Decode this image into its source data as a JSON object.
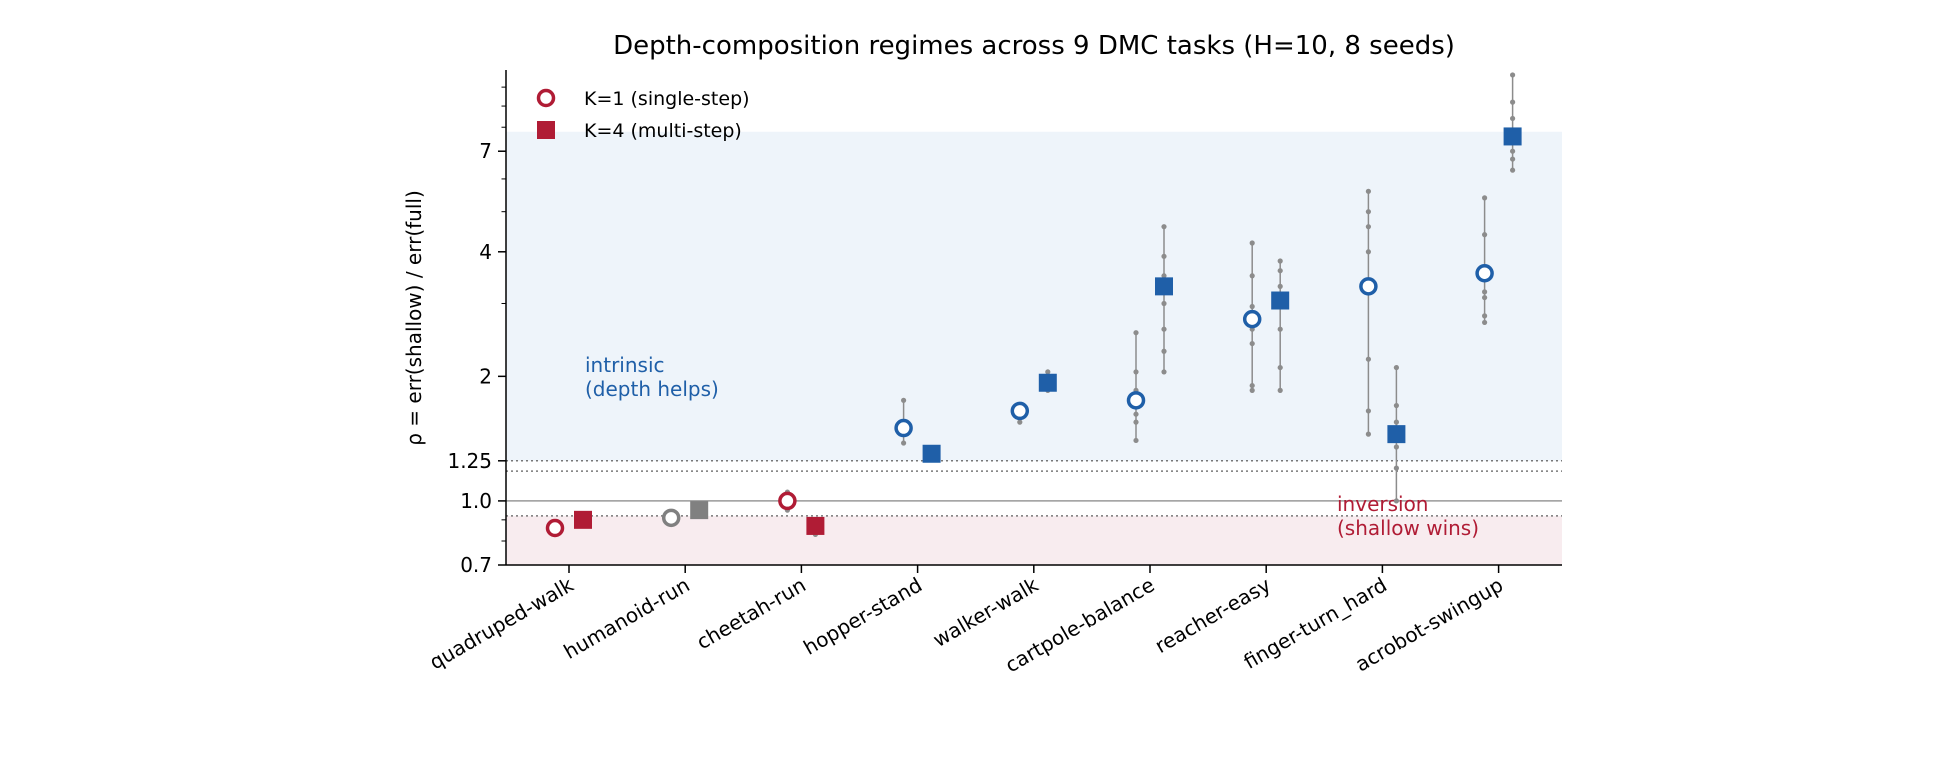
{
  "chart_data": {
    "type": "scatter",
    "title": "Depth-composition regimes across 9 DMC tasks (H=10, 8 seeds)",
    "ylabel": "ρ = err(shallow) / err(full)",
    "xlabel": "",
    "yscale": "log",
    "ylim": [
      0.7,
      11.0
    ],
    "yticks": [
      {
        "value": 0.7,
        "label": "0.7"
      },
      {
        "value": 1.0,
        "label": "1.0"
      },
      {
        "value": 1.25,
        "label": "1.25"
      },
      {
        "value": 2,
        "label": "2"
      },
      {
        "value": 4,
        "label": "4"
      },
      {
        "value": 7,
        "label": "7"
      }
    ],
    "yminor_ticks": [
      0.8,
      0.9,
      3,
      5,
      6,
      8,
      9,
      10
    ],
    "categories": [
      "quadruped-walk",
      "humanoid-run",
      "cheetah-run",
      "hopper-stand",
      "walker-walk",
      "cartpole-balance",
      "reacher-easy",
      "finger-turn_hard",
      "acrobot-swingup"
    ],
    "reference_lines": [
      {
        "value": 1.0,
        "style": "solid"
      },
      {
        "value": 1.25,
        "style": "dotted"
      },
      {
        "value": 1.18,
        "style": "dotted"
      },
      {
        "value": 0.92,
        "style": "dotted"
      }
    ],
    "regions": [
      {
        "name": "intrinsic",
        "label_lines": [
          "intrinsic",
          "(depth helps)"
        ],
        "from": 1.25,
        "to": 7.8,
        "color": "#eef4fa",
        "text_color": "#1f5fa8"
      },
      {
        "name": "inversion",
        "label_lines": [
          "inversion",
          "(shallow wins)"
        ],
        "from": 0.7,
        "to": 0.92,
        "color": "#f8ecef",
        "text_color": "#b01c35"
      }
    ],
    "colors": {
      "intrinsic": "#1f5fa8",
      "inversion": "#b01c35",
      "neutral": "#808080",
      "seed": "#8c8c8c"
    },
    "series": [
      {
        "name": "K=1 (single-step)",
        "marker": "circle-open",
        "values": [
          0.86,
          0.91,
          1.0,
          1.5,
          1.65,
          1.75,
          2.75,
          3.3,
          3.55
        ],
        "regime": [
          "inversion",
          "neutral",
          "inversion",
          "intrinsic",
          "intrinsic",
          "intrinsic",
          "intrinsic",
          "intrinsic",
          "intrinsic"
        ],
        "seeds": [
          [
            0.85,
            0.87
          ],
          [
            0.9,
            0.92
          ],
          [
            0.95,
            1.0,
            1.05
          ],
          [
            1.38,
            1.45,
            1.55,
            1.75
          ],
          [
            1.55,
            1.63,
            1.7
          ],
          [
            1.4,
            1.55,
            1.62,
            1.7,
            1.85,
            2.05,
            2.55
          ],
          [
            1.85,
            1.9,
            2.4,
            2.6,
            2.95,
            3.5,
            4.2
          ],
          [
            1.45,
            1.65,
            2.2,
            3.2,
            4.0,
            4.6,
            5.0,
            5.6
          ],
          [
            2.7,
            2.8,
            3.1,
            3.2,
            4.4,
            5.4
          ]
        ]
      },
      {
        "name": "K=4 (multi-step)",
        "marker": "square-filled",
        "values": [
          0.9,
          0.95,
          0.87,
          1.3,
          1.93,
          3.3,
          3.05,
          1.45,
          7.6
        ],
        "regime": [
          "inversion",
          "neutral",
          "inversion",
          "intrinsic",
          "intrinsic",
          "intrinsic",
          "intrinsic",
          "intrinsic",
          "intrinsic"
        ],
        "seeds": [
          [
            0.89,
            0.91
          ],
          [
            0.94,
            0.96
          ],
          [
            0.83,
            0.86,
            0.88
          ],
          [
            1.28,
            1.32
          ],
          [
            1.85,
            1.95,
            2.05
          ],
          [
            2.05,
            2.3,
            2.6,
            3.0,
            3.5,
            3.9,
            4.6
          ],
          [
            1.85,
            2.1,
            2.6,
            3.3,
            3.6,
            3.8
          ],
          [
            1.0,
            1.2,
            1.35,
            1.55,
            1.7,
            2.1
          ],
          [
            6.3,
            6.7,
            7.0,
            7.5,
            8.4,
            9.2,
            10.7
          ]
        ]
      }
    ],
    "legend": {
      "position": "top-left",
      "entries": [
        "K=1 (single-step)",
        "K=4 (multi-step)"
      ]
    },
    "grid": false
  }
}
